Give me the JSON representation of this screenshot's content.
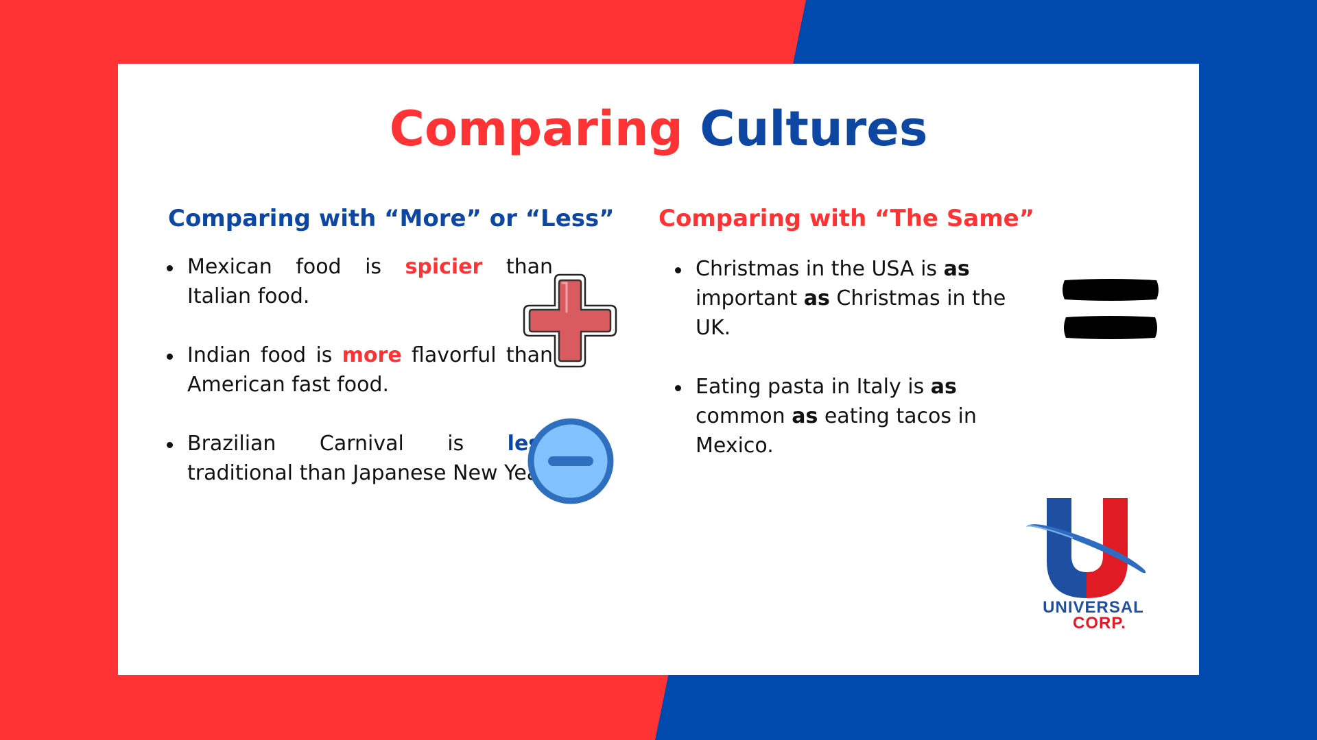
{
  "colors": {
    "red": "#ff3333",
    "blue": "#0d47a1",
    "bg_red": "#ff3333",
    "bg_blue": "#004aad"
  },
  "title": {
    "part1": "Comparing",
    "part2": "Cultures"
  },
  "left": {
    "heading": "Comparing with “More” or “Less”",
    "items": [
      {
        "pre": "Mexican food is ",
        "key": "spicier",
        "post": " than Italian food."
      },
      {
        "pre": "Indian food is ",
        "key": "more",
        "post": " flavorful than American fast food."
      },
      {
        "pre": "Brazilian Carnival is ",
        "key": "less",
        "post": " traditional than Japanese New Year."
      }
    ]
  },
  "right": {
    "heading": "Comparing with “The Same”",
    "items": [
      {
        "pre": "Christmas in the USA is ",
        "key1": "as",
        "mid": " important ",
        "key2": "as",
        "post": " Christmas in the UK."
      },
      {
        "pre": "Eating pasta in Italy is ",
        "key1": "as",
        "mid": " common ",
        "key2": "as",
        "post": " eating tacos in Mexico."
      }
    ]
  },
  "icons": [
    "plus-icon",
    "minus-icon",
    "equals-icon"
  ],
  "logo": {
    "line1": "UNIVERSAL",
    "line2": "CORP."
  }
}
